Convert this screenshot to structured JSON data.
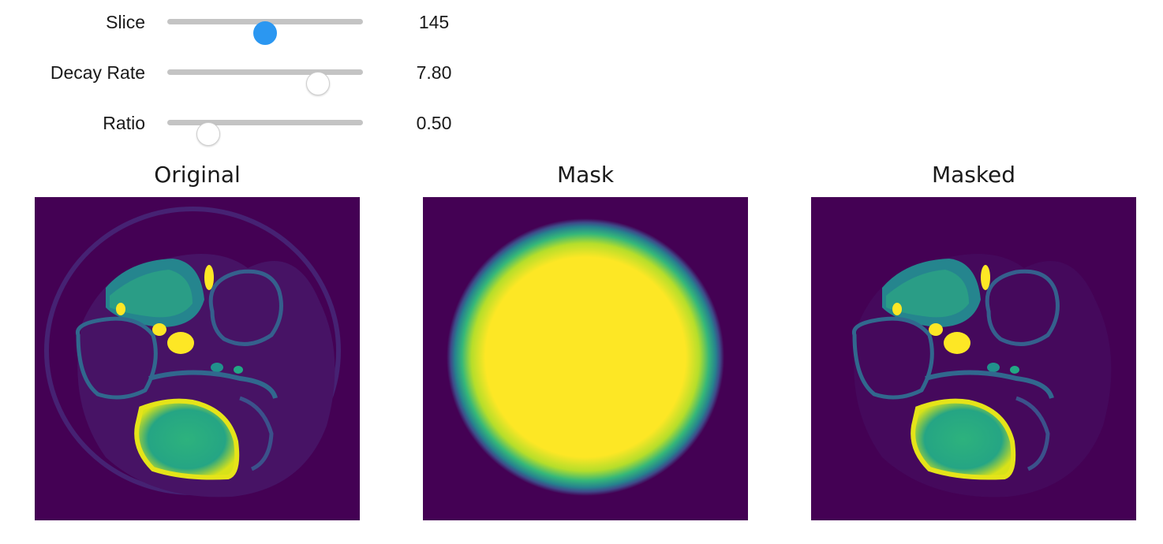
{
  "sliders": [
    {
      "id": "slice",
      "label": "Slice",
      "value": "145",
      "level": 0.5,
      "active": true
    },
    {
      "id": "decay-rate",
      "label": "Decay Rate",
      "value": "7.80",
      "level": 0.77,
      "active": false
    },
    {
      "id": "ratio",
      "label": "Ratio",
      "value": "0.50",
      "level": 0.21,
      "active": false
    }
  ],
  "panels": [
    {
      "id": "original",
      "title": "Original"
    },
    {
      "id": "mask",
      "title": "Mask"
    },
    {
      "id": "masked",
      "title": "Masked"
    }
  ],
  "colormap": "viridis",
  "colors": {
    "background": "#440154",
    "mid": "#21918c",
    "bright": "#fde725",
    "accent": "#2b97f1"
  }
}
